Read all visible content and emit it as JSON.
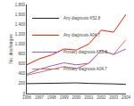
{
  "chart_data": {
    "type": "line",
    "x": [
      1996,
      1997,
      1998,
      1999,
      2000,
      2001,
      2002,
      2003,
      2004
    ],
    "series": [
      {
        "name": "Any diagnosis K52.8",
        "color": "#222222",
        "values": [
          200,
          205,
          215,
          215,
          215,
          205,
          205,
          195,
          185
        ]
      },
      {
        "name": "Any diagnosis A04.7",
        "color": "#e8220a",
        "values": [
          580,
          700,
          780,
          900,
          880,
          1000,
          1280,
          1240,
          1600
        ]
      },
      {
        "name": "Primary diagnosis K52.8",
        "color": "#9b5fb5",
        "values": [
          390,
          490,
          560,
          620,
          580,
          610,
          870,
          790,
          900
        ]
      },
      {
        "name": "Primary diagnosis A04.7",
        "color": "#d47070",
        "values": [
          370,
          430,
          490,
          545,
          505,
          610,
          870,
          790,
          1090
        ]
      }
    ],
    "ylabel": "No. discharges",
    "xlim": [
      1996,
      2004
    ],
    "xticks": [
      1996,
      1997,
      1998,
      1999,
      2000,
      2001,
      2002,
      2003,
      2004
    ],
    "ylim": [
      0,
      1800
    ],
    "yticks": [
      0,
      200,
      400,
      600,
      800,
      {
        "value": 1000,
        "label": "1,000"
      },
      {
        "value": 1200,
        "label": "1,200"
      },
      {
        "value": 1400,
        "label": "1,400"
      },
      {
        "value": 1600,
        "label": "1,600"
      },
      {
        "value": 1800,
        "label": "1,800"
      }
    ],
    "grid": false,
    "legend": "upper left"
  }
}
